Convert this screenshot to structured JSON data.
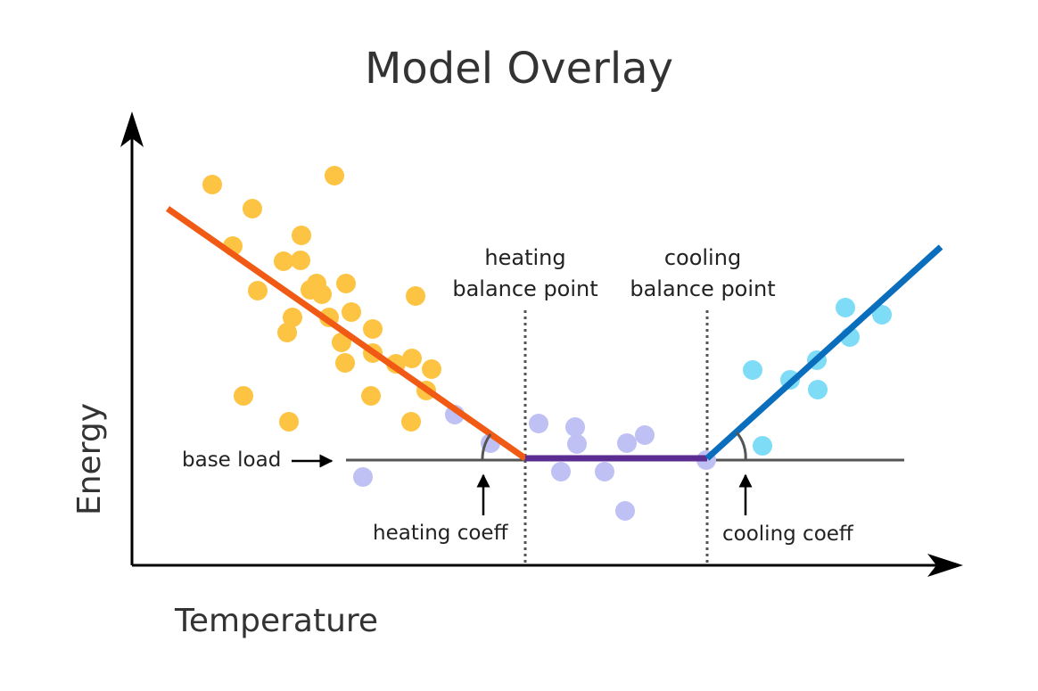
{
  "title": "Model Overlay",
  "axes": {
    "x_label": "Temperature",
    "y_label": "Energy"
  },
  "annotations": {
    "heating_balance": [
      "heating",
      "balance point"
    ],
    "cooling_balance": [
      "cooling",
      "balance point"
    ],
    "base_load": "base load",
    "heating_coeff": "heating coeff",
    "cooling_coeff": "cooling coeff"
  },
  "colors": {
    "heating_points": "#fdc443",
    "baseload_points": "#bfc0f4",
    "cooling_points": "#7edcf6",
    "heating_line": "#f05a14",
    "baseload_line": "#5c2d91",
    "cooling_line": "#0a6ebd",
    "reference_line": "#555555",
    "axis": "#000000"
  }
}
